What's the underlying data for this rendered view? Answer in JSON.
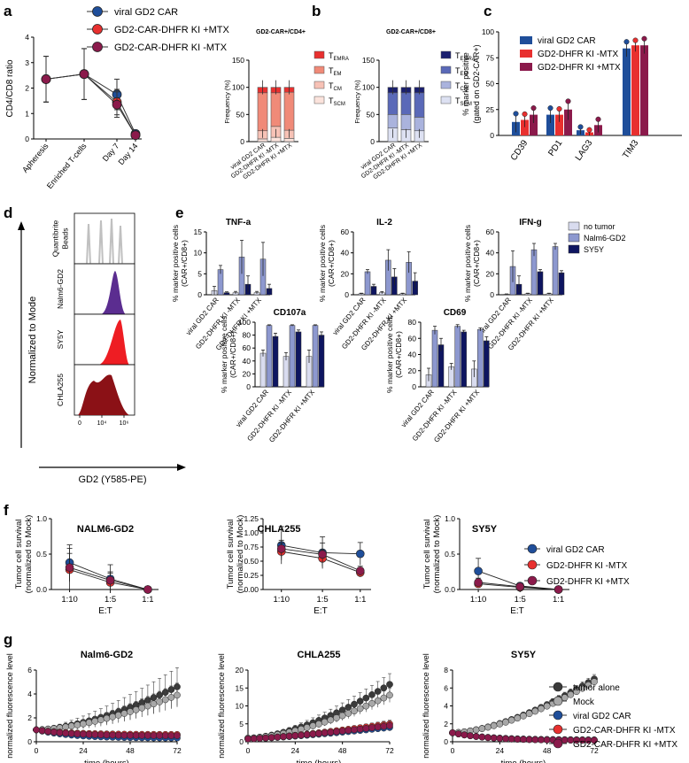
{
  "colors": {
    "viral": "#1f4e9a",
    "minus": "#e8302f",
    "plus": "#8b1a4b",
    "tumor": "#3a3a3a",
    "mock": "#a8a8a8",
    "notumor": "#d9dcef",
    "nalm": "#8d98cf",
    "sy5y": "#0e1560",
    "temra": "#e8302f",
    "tem": "#f08a78",
    "tcm": "#f7c2b6",
    "tscm": "#fbe3dc",
    "temra8": "#1a1f6e",
    "tem8": "#5a69b8",
    "tcm8": "#aab3dd",
    "tscm8": "#dde1f2",
    "beads": "#c0c0c0",
    "nalmHist": "#5b2d90",
    "sy5yHist": "#ee1d23",
    "chlaHist": "#8b1116"
  },
  "panels": {
    "a": {
      "letter": "a",
      "ylabel": "CD4/CD8 ratio",
      "categories": [
        "Apheresis",
        "Enriched T-cells",
        "Day 7",
        "Day 14"
      ],
      "legend": [
        "viral GD2 CAR",
        "GD2-CAR-DHFR KI +MTX",
        "GD2-CAR-DHFR KI -MTX"
      ]
    },
    "b": {
      "letter": "b",
      "title_cd4": "GD2-CAR+/CD4+",
      "title_cd8": "GD2-CAR+/CD8+",
      "ylabel": "Frequency (%)",
      "categories": [
        "viral GD2 CAR",
        "GD2-DHFR KI -MTX",
        "GD2-DHFR KI +MTX"
      ],
      "legend": [
        {
          "main": "T",
          "sub": "EMRA"
        },
        {
          "main": "T",
          "sub": "EM"
        },
        {
          "main": "T",
          "sub": "CM"
        },
        {
          "main": "T",
          "sub": "SCM"
        }
      ]
    },
    "c": {
      "letter": "c",
      "ylabel1": "% marker positive",
      "ylabel2": "(gated on GD2-CAR+)",
      "categories": [
        "CD39",
        "PD1",
        "LAG3",
        "TIM3"
      ],
      "legend": [
        "viral GD2 CAR",
        "GD2-DHFR KI -MTX",
        "GD2-DHFR KI +MTX"
      ]
    },
    "d": {
      "letter": "d",
      "ylabel": "Normalized to Mode",
      "xlabel": "GD2 (Y585-PE)",
      "tracks": [
        "Quantibrite Beads",
        "Nalm6-GD2",
        "SY5Y",
        "CHLA255"
      ],
      "ticks": [
        "0",
        "10⁴",
        "10⁶"
      ]
    },
    "e": {
      "letter": "e",
      "ylabel1": "% marker positive cells",
      "ylabel2": "(CAR+/CD8+)",
      "categories": [
        "viral GD2 CAR",
        "GD2-DHFR KI -MTX",
        "GD2-DHFR KI +MTX"
      ],
      "legend": [
        "no tumor",
        "Nalm6-GD2",
        "SY5Y"
      ]
    },
    "f": {
      "letter": "f",
      "ylabel1": "Tumor cell survival",
      "ylabel2": "(normalized to Mock)",
      "xlabel": "E:T",
      "legend": [
        "viral GD2 CAR",
        "GD2-DHFR KI -MTX",
        "GD2-DHFR KI +MTX"
      ]
    },
    "g": {
      "letter": "g",
      "ylabel": "normalized fluorescence level",
      "xlabel": "time (hours)",
      "legend": [
        "tumor alone",
        "Mock",
        "viral GD2 CAR",
        "GD2-CAR-DHFR KI -MTX",
        "GD2-CAR-DHFR KI +MTX"
      ]
    }
  },
  "chart_data": [
    {
      "panel": "a",
      "type": "line",
      "ylim": [
        0,
        4
      ],
      "yticks": [
        "0",
        "1",
        "2",
        "3",
        "4"
      ],
      "categories": [
        "Apheresis",
        "Enriched T-cells",
        "Day 7",
        "Day 14"
      ],
      "series": [
        {
          "name": "viral GD2 CAR",
          "values": [
            2.35,
            2.55,
            1.75,
            0.2
          ],
          "err": [
            0.9,
            1.0,
            0.6,
            0.1
          ]
        },
        {
          "name": "GD2-CAR-DHFR KI +MTX",
          "values": [
            2.35,
            2.55,
            1.45,
            0.15
          ],
          "err": [
            0.9,
            1.0,
            0.5,
            0.1
          ]
        },
        {
          "name": "GD2-CAR-DHFR KI -MTX",
          "values": [
            2.35,
            2.55,
            1.35,
            0.15
          ],
          "err": [
            0.9,
            1.0,
            0.5,
            0.1
          ]
        }
      ]
    },
    {
      "panel": "b-cd4",
      "type": "bar",
      "stacked": true,
      "ylim": [
        0,
        150
      ],
      "yticks": [
        "0",
        "50",
        "100",
        "150"
      ],
      "categories": [
        "viral GD2 CAR",
        "GD2-DHFR KI -MTX",
        "GD2-DHFR KI +MTX"
      ],
      "series": [
        {
          "name": "TSCM",
          "values": [
            5,
            8,
            6
          ]
        },
        {
          "name": "TCM",
          "values": [
            15,
            20,
            15
          ]
        },
        {
          "name": "TEM",
          "values": [
            70,
            62,
            70
          ]
        },
        {
          "name": "TEMRA",
          "values": [
            10,
            10,
            9
          ]
        }
      ]
    },
    {
      "panel": "b-cd8",
      "type": "bar",
      "stacked": true,
      "ylim": [
        0,
        150
      ],
      "yticks": [
        "0",
        "50",
        "100",
        "150"
      ],
      "categories": [
        "viral GD2 CAR",
        "GD2-DHFR KI -MTX",
        "GD2-DHFR KI +MTX"
      ],
      "series": [
        {
          "name": "TSCM",
          "values": [
            25,
            22,
            20
          ]
        },
        {
          "name": "TCM",
          "values": [
            25,
            28,
            25
          ]
        },
        {
          "name": "TEM",
          "values": [
            40,
            40,
            45
          ]
        },
        {
          "name": "TEMRA",
          "values": [
            10,
            10,
            10
          ]
        }
      ]
    },
    {
      "panel": "c",
      "type": "bar",
      "ylim": [
        0,
        100
      ],
      "yticks": [
        "0",
        "25",
        "50",
        "75",
        "100"
      ],
      "categories": [
        "CD39",
        "PD1",
        "LAG3",
        "TIM3"
      ],
      "series": [
        {
          "name": "viral GD2 CAR",
          "values": [
            13,
            20,
            5,
            84
          ],
          "err": [
            10,
            8,
            4,
            8
          ]
        },
        {
          "name": "GD2-DHFR KI -MTX",
          "values": [
            15,
            20,
            3,
            87
          ],
          "err": [
            7,
            7,
            3,
            6
          ]
        },
        {
          "name": "GD2-DHFR KI +MTX",
          "values": [
            20,
            25,
            10,
            87
          ],
          "err": [
            8,
            10,
            7,
            8
          ]
        }
      ]
    },
    {
      "panel": "e-tnf",
      "type": "bar",
      "title": "TNF-a",
      "ylim": [
        0,
        15
      ],
      "yticks": [
        "0",
        "5",
        "10",
        "15"
      ],
      "categories": [
        "viral GD2 CAR",
        "GD2-DHFR KI -MTX",
        "GD2-DHFR KI +MTX"
      ],
      "series": [
        {
          "name": "no tumor",
          "values": [
            1.0,
            0.5,
            0.5
          ],
          "err": [
            1.0,
            0.3,
            0.3
          ]
        },
        {
          "name": "Nalm6-GD2",
          "values": [
            6,
            9,
            8.5
          ],
          "err": [
            1,
            4,
            4
          ]
        },
        {
          "name": "SY5Y",
          "values": [
            0.5,
            2.5,
            1.5
          ],
          "err": [
            0.2,
            2,
            1
          ]
        }
      ]
    },
    {
      "panel": "e-il2",
      "type": "bar",
      "title": "IL-2",
      "ylim": [
        0,
        60
      ],
      "yticks": [
        "0",
        "20",
        "40",
        "60"
      ],
      "categories": [
        "viral GD2 CAR",
        "GD2-DHFR KI -MTX",
        "GD2-DHFR KI +MTX"
      ],
      "series": [
        {
          "name": "no tumor",
          "values": [
            1,
            2,
            1
          ],
          "err": [
            0.5,
            1,
            0.5
          ]
        },
        {
          "name": "Nalm6-GD2",
          "values": [
            22,
            33,
            31
          ],
          "err": [
            2,
            10,
            10
          ]
        },
        {
          "name": "SY5Y",
          "values": [
            8,
            17,
            13
          ],
          "err": [
            2,
            8,
            8
          ]
        }
      ]
    },
    {
      "panel": "e-ifng",
      "type": "bar",
      "title": "IFN-g",
      "ylim": [
        0,
        60
      ],
      "yticks": [
        "0",
        "20",
        "40",
        "60"
      ],
      "categories": [
        "viral GD2 CAR",
        "GD2-DHFR KI -MTX",
        "GD2-DHFR KI +MTX"
      ],
      "series": [
        {
          "name": "no tumor",
          "values": [
            0.5,
            1,
            1
          ],
          "err": [
            0.3,
            0.5,
            0.5
          ]
        },
        {
          "name": "Nalm6-GD2",
          "values": [
            27,
            43,
            46
          ],
          "err": [
            15,
            6,
            3
          ]
        },
        {
          "name": "SY5Y",
          "values": [
            10,
            22,
            21
          ],
          "err": [
            8,
            2,
            2
          ]
        }
      ]
    },
    {
      "panel": "e-cd107a",
      "type": "bar",
      "title": "CD107a",
      "ylim": [
        0,
        100
      ],
      "yticks": [
        "0",
        "20",
        "40",
        "60",
        "80",
        "100"
      ],
      "categories": [
        "viral GD2 CAR",
        "GD2-DHFR KI -MTX",
        "GD2-DHFR KI +MTX"
      ],
      "series": [
        {
          "name": "no tumor",
          "values": [
            52,
            47,
            47
          ],
          "err": [
            5,
            6,
            10
          ]
        },
        {
          "name": "Nalm6-GD2",
          "values": [
            95,
            95,
            95
          ],
          "err": [
            1,
            1,
            1
          ]
        },
        {
          "name": "SY5Y",
          "values": [
            78,
            85,
            80
          ],
          "err": [
            5,
            3,
            5
          ]
        }
      ]
    },
    {
      "panel": "e-cd69",
      "type": "bar",
      "title": "CD69",
      "ylim": [
        0,
        80
      ],
      "yticks": [
        "0",
        "20",
        "40",
        "60",
        "80"
      ],
      "categories": [
        "viral GD2 CAR",
        "GD2-DHFR KI -MTX",
        "GD2-DHFR KI +MTX"
      ],
      "series": [
        {
          "name": "no tumor",
          "values": [
            15,
            25,
            22
          ],
          "err": [
            8,
            4,
            10
          ]
        },
        {
          "name": "Nalm6-GD2",
          "values": [
            70,
            75,
            71
          ],
          "err": [
            5,
            2,
            2
          ]
        },
        {
          "name": "SY5Y",
          "values": [
            52,
            68,
            57
          ],
          "err": [
            8,
            2,
            5
          ]
        }
      ]
    },
    {
      "panel": "f-nalm",
      "type": "line",
      "title": "NALM6-GD2",
      "ylim": [
        0,
        1.0
      ],
      "yticks": [
        "0.0",
        "0.5",
        "1.0"
      ],
      "categories": [
        "1:10",
        "1:5",
        "1:1"
      ],
      "series": [
        {
          "name": "viral GD2 CAR",
          "values": [
            0.38,
            0.15,
            0.0
          ],
          "err": [
            0.25,
            0.2,
            0.02
          ]
        },
        {
          "name": "GD2-DHFR KI -MTX",
          "values": [
            0.28,
            0.1,
            0.0
          ],
          "err": [
            0.3,
            0.15,
            0.02
          ]
        },
        {
          "name": "GD2-DHFR KI +MTX",
          "values": [
            0.31,
            0.13,
            0.0
          ],
          "err": [
            0.2,
            0.1,
            0.02
          ]
        }
      ]
    },
    {
      "panel": "f-chla",
      "type": "line",
      "title": "CHLA255",
      "ylim": [
        0,
        1.25
      ],
      "yticks": [
        "0.00",
        "0.25",
        "0.50",
        "0.75",
        "1.00",
        "1.25"
      ],
      "categories": [
        "1:10",
        "1:5",
        "1:1"
      ],
      "series": [
        {
          "name": "viral GD2 CAR",
          "values": [
            0.78,
            0.65,
            0.63
          ],
          "err": [
            0.33,
            0.28,
            0.2
          ]
        },
        {
          "name": "GD2-DHFR KI -MTX",
          "values": [
            0.67,
            0.55,
            0.3
          ],
          "err": [
            0.15,
            0.15,
            0.08
          ]
        },
        {
          "name": "GD2-DHFR KI +MTX",
          "values": [
            0.72,
            0.62,
            0.33
          ],
          "err": [
            0.15,
            0.2,
            0.08
          ]
        }
      ]
    },
    {
      "panel": "f-sy5y",
      "type": "line",
      "title": "SY5Y",
      "ylim": [
        0,
        1.0
      ],
      "yticks": [
        "0.0",
        "0.5",
        "1.0"
      ],
      "categories": [
        "1:10",
        "1:5",
        "1:1"
      ],
      "series": [
        {
          "name": "viral GD2 CAR",
          "values": [
            0.26,
            0.05,
            0.0
          ],
          "err": [
            0.18,
            0.04,
            0.01
          ]
        },
        {
          "name": "GD2-DHFR KI -MTX",
          "values": [
            0.08,
            0.03,
            0.0
          ],
          "err": [
            0.05,
            0.02,
            0.01
          ]
        },
        {
          "name": "GD2-DHFR KI +MTX",
          "values": [
            0.1,
            0.04,
            0.0
          ],
          "err": [
            0.06,
            0.03,
            0.01
          ]
        }
      ]
    },
    {
      "panel": "g-nalm",
      "type": "line",
      "title": "Nalm6-GD2",
      "xlim": [
        0,
        72
      ],
      "ylim": [
        0,
        6
      ],
      "xticks": [
        "0",
        "24",
        "48",
        "72"
      ],
      "yticks": [
        "0",
        "2",
        "4",
        "6"
      ],
      "series": [
        {
          "name": "tumor alone",
          "start": 1.0,
          "end": 4.6,
          "shape": "late",
          "err": 1.6
        },
        {
          "name": "Mock",
          "start": 1.0,
          "end": 3.9,
          "shape": "late",
          "err": 1.0
        },
        {
          "name": "viral GD2 CAR",
          "start": 1.0,
          "end": 0.3,
          "shape": "decay",
          "err": 0.05
        },
        {
          "name": "GD2-CAR-DHFR KI -MTX",
          "start": 1.0,
          "end": 0.6,
          "shape": "decay",
          "err": 0.05
        },
        {
          "name": "GD2-CAR-DHFR KI +MTX",
          "start": 1.0,
          "end": 0.5,
          "shape": "decay",
          "err": 0.05
        }
      ]
    },
    {
      "panel": "g-chla",
      "type": "line",
      "title": "CHLA255",
      "xlim": [
        0,
        72
      ],
      "ylim": [
        0,
        20
      ],
      "xticks": [
        "0",
        "24",
        "48",
        "72"
      ],
      "yticks": [
        "0",
        "5",
        "10",
        "15",
        "20"
      ],
      "series": [
        {
          "name": "tumor alone",
          "start": 1.0,
          "end": 16,
          "shape": "late",
          "err": 3
        },
        {
          "name": "Mock",
          "start": 1.0,
          "end": 13,
          "shape": "late",
          "err": 2
        },
        {
          "name": "viral GD2 CAR",
          "start": 0.8,
          "end": 4,
          "shape": "slow",
          "err": 1
        },
        {
          "name": "GD2-CAR-DHFR KI -MTX",
          "start": 0.8,
          "end": 5,
          "shape": "slow",
          "err": 1
        },
        {
          "name": "GD2-CAR-DHFR KI +MTX",
          "start": 0.8,
          "end": 4.5,
          "shape": "slow",
          "err": 1
        }
      ]
    },
    {
      "panel": "g-sy5y",
      "type": "line",
      "title": "SY5Y",
      "xlim": [
        0,
        72
      ],
      "ylim": [
        0,
        8
      ],
      "xticks": [
        "0",
        "24",
        "48",
        "72"
      ],
      "yticks": [
        "0",
        "2",
        "4",
        "6",
        "8"
      ],
      "series": [
        {
          "name": "tumor alone",
          "start": 1.0,
          "end": 7.0,
          "shape": "late",
          "err": 0.5
        },
        {
          "name": "Mock",
          "start": 1.0,
          "end": 6.7,
          "shape": "late",
          "err": 0.4
        },
        {
          "name": "viral GD2 CAR",
          "start": 1.0,
          "end": 0.2,
          "shape": "decay",
          "err": 0.05
        },
        {
          "name": "GD2-CAR-DHFR KI -MTX",
          "start": 1.0,
          "end": 0.15,
          "shape": "decay",
          "err": 0.05
        },
        {
          "name": "GD2-CAR-DHFR KI +MTX",
          "start": 1.0,
          "end": 0.15,
          "shape": "decay",
          "err": 0.05
        }
      ]
    }
  ]
}
